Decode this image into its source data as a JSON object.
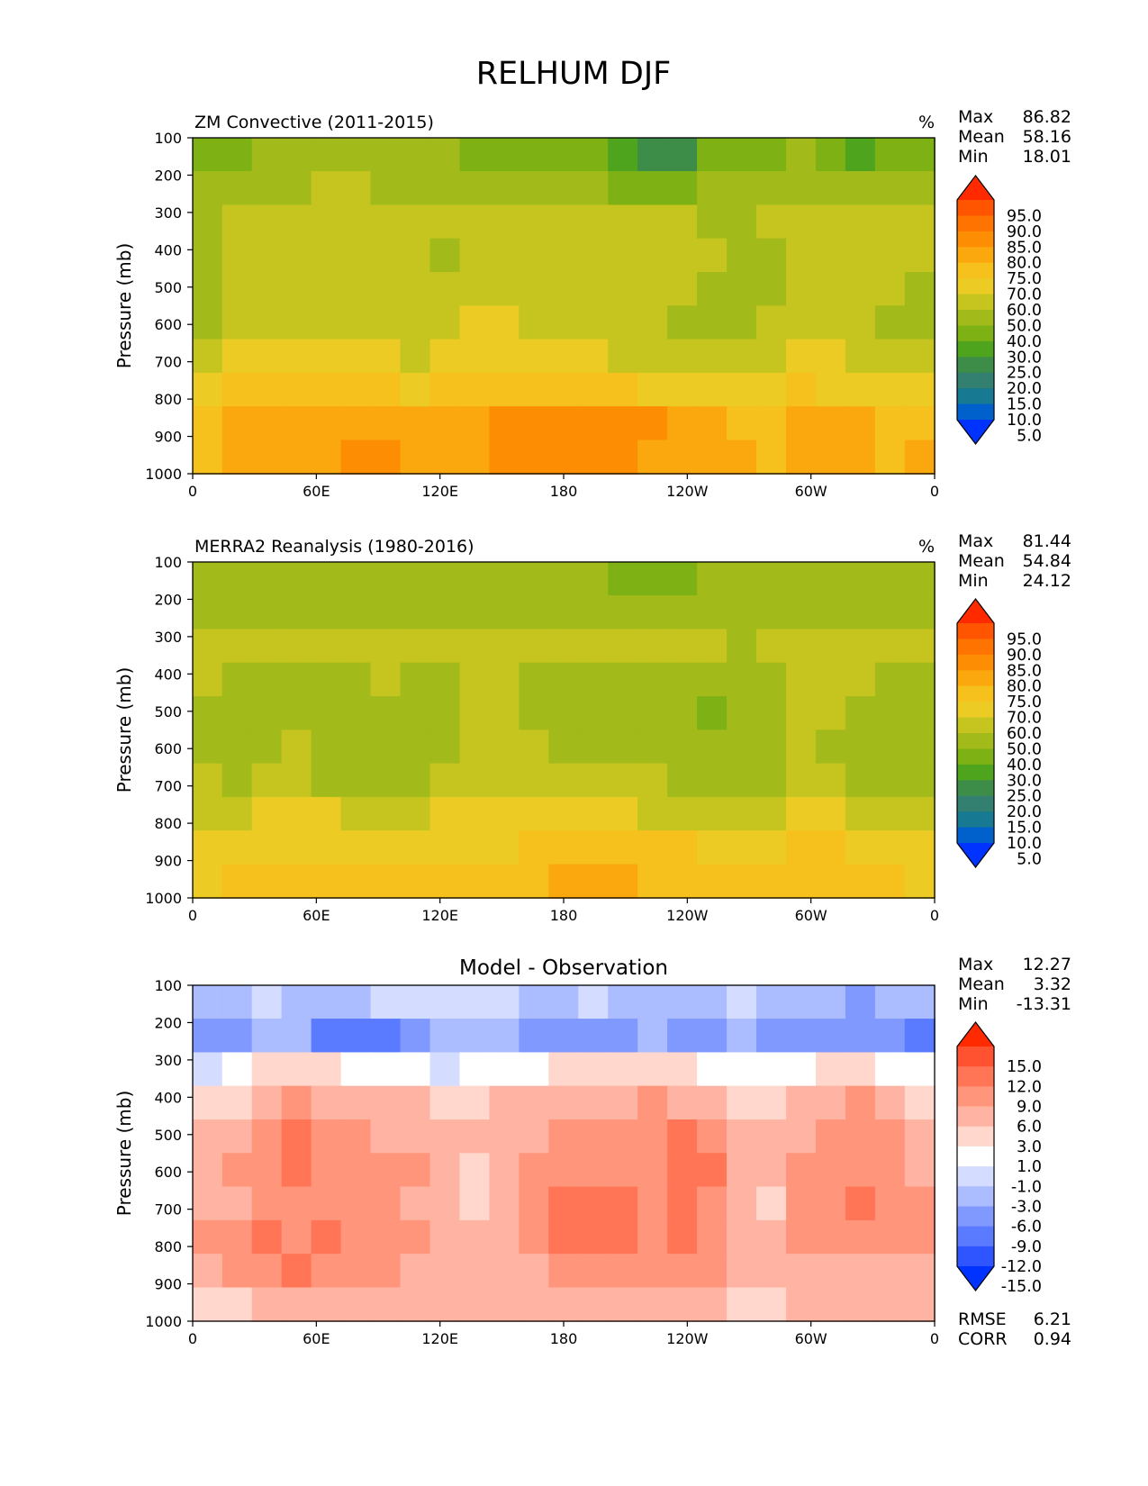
{
  "figure": {
    "title": "RELHUM DJF"
  },
  "chart_data": [
    {
      "type": "heatmap",
      "title": "ZM Convective (2011-2015)",
      "units": "%",
      "ylabel": "Pressure (mb)",
      "x_ticks": [
        "0",
        "60E",
        "120E",
        "180",
        "120W",
        "60W",
        "0"
      ],
      "y_ticks": [
        "100",
        "200",
        "300",
        "400",
        "500",
        "600",
        "700",
        "800",
        "900",
        "1000"
      ],
      "xlim": [
        0,
        360
      ],
      "ylim": [
        100,
        1000
      ],
      "stats": [
        {
          "label": "Max",
          "value": "86.82"
        },
        {
          "label": "Mean",
          "value": "58.16"
        },
        {
          "label": "Min",
          "value": "18.01"
        }
      ],
      "colorbar": {
        "levels": [
          "95.0",
          "90.0",
          "85.0",
          "80.0",
          "75.0",
          "70.0",
          "60.0",
          "50.0",
          "40.0",
          "30.0",
          "25.0",
          "20.0",
          "15.0",
          "10.0",
          "5.0"
        ],
        "colors": [
          "#ff2a00",
          "#ff5500",
          "#ff7300",
          "#fd8e04",
          "#fba80f",
          "#f7c11d",
          "#ebcb24",
          "#c6c41f",
          "#a2bb1a",
          "#7eb214",
          "#4ea41c",
          "#3d8d48",
          "#337f70",
          "#177a92",
          "#0060cc",
          "#0033ff"
        ]
      },
      "field": {
        "levels": [
          "100",
          "200",
          "300",
          "400",
          "500",
          "600",
          "700",
          "800",
          "900",
          "1000"
        ],
        "rows": [
          [
            36,
            38,
            42,
            45,
            46,
            45,
            44,
            42,
            40,
            38,
            36,
            35,
            33,
            30,
            26,
            22,
            24,
            30,
            34,
            38,
            40,
            36,
            28,
            32,
            36
          ],
          [
            42,
            44,
            47,
            49,
            50,
            50,
            49,
            47,
            46,
            45,
            44,
            43,
            42,
            40,
            38,
            36,
            38,
            42,
            44,
            46,
            47,
            45,
            42,
            44,
            45
          ],
          [
            48,
            52,
            56,
            58,
            58,
            57,
            56,
            54,
            53,
            54,
            56,
            57,
            56,
            55,
            54,
            52,
            50,
            48,
            47,
            50,
            54,
            56,
            58,
            57,
            55
          ],
          [
            48,
            53,
            58,
            59,
            59,
            58,
            58,
            57,
            49,
            55,
            58,
            59,
            58,
            57,
            56,
            55,
            53,
            50,
            48,
            47,
            52,
            56,
            57,
            55,
            50
          ],
          [
            46,
            52,
            57,
            58,
            59,
            59,
            58,
            58,
            55,
            56,
            58,
            59,
            59,
            58,
            56,
            54,
            50,
            48,
            47,
            49,
            54,
            56,
            56,
            52,
            48
          ],
          [
            47,
            53,
            57,
            58,
            59,
            59,
            58,
            57,
            58,
            62,
            60,
            59,
            59,
            58,
            57,
            54,
            49,
            47,
            46,
            51,
            55,
            56,
            54,
            48,
            46
          ],
          [
            56,
            60,
            62,
            63,
            61,
            60,
            60,
            58,
            60,
            64,
            63,
            62,
            61,
            60,
            59,
            58,
            56,
            54,
            52,
            56,
            62,
            61,
            58,
            53,
            50
          ],
          [
            68,
            70,
            71,
            72,
            71,
            70,
            70,
            69,
            70,
            72,
            72,
            72,
            72,
            71,
            70,
            69,
            68,
            66,
            64,
            66,
            70,
            69,
            66,
            62,
            60
          ],
          [
            73,
            75,
            77,
            78,
            78,
            78,
            78,
            77,
            77,
            78,
            80,
            82,
            83,
            83,
            82,
            80,
            78,
            76,
            74,
            72,
            78,
            78,
            76,
            73,
            73
          ],
          [
            74,
            77,
            79,
            79,
            79,
            80,
            80,
            79,
            79,
            79,
            80,
            81,
            81,
            81,
            80,
            79,
            78,
            77,
            76,
            73,
            77,
            78,
            77,
            74,
            76
          ]
        ]
      }
    },
    {
      "type": "heatmap",
      "title": "MERRA2 Reanalysis (1980-2016)",
      "units": "%",
      "ylabel": "Pressure (mb)",
      "x_ticks": [
        "0",
        "60E",
        "120E",
        "180",
        "120W",
        "60W",
        "0"
      ],
      "y_ticks": [
        "100",
        "200",
        "300",
        "400",
        "500",
        "600",
        "700",
        "800",
        "900",
        "1000"
      ],
      "xlim": [
        0,
        360
      ],
      "ylim": [
        100,
        1000
      ],
      "stats": [
        {
          "label": "Max",
          "value": "81.44"
        },
        {
          "label": "Mean",
          "value": "54.84"
        },
        {
          "label": "Min",
          "value": "24.12"
        }
      ],
      "colorbar": {
        "levels": [
          "95.0",
          "90.0",
          "85.0",
          "80.0",
          "75.0",
          "70.0",
          "60.0",
          "50.0",
          "40.0",
          "30.0",
          "25.0",
          "20.0",
          "15.0",
          "10.0",
          "5.0"
        ],
        "colors": [
          "#ff2a00",
          "#ff5500",
          "#ff7300",
          "#fd8e04",
          "#fba80f",
          "#f7c11d",
          "#ebcb24",
          "#c6c41f",
          "#a2bb1a",
          "#7eb214",
          "#4ea41c",
          "#3d8d48",
          "#337f70",
          "#177a92",
          "#0060cc",
          "#0033ff"
        ]
      },
      "field": {
        "levels": [
          "100",
          "200",
          "300",
          "400",
          "500",
          "600",
          "700",
          "800",
          "900",
          "1000"
        ],
        "rows": [
          [
            40,
            42,
            44,
            45,
            46,
            46,
            45,
            44,
            43,
            42,
            42,
            42,
            41,
            40,
            37,
            35,
            36,
            40,
            42,
            44,
            45,
            44,
            43,
            42,
            42
          ],
          [
            44,
            46,
            47,
            48,
            48,
            48,
            47,
            46,
            46,
            46,
            47,
            47,
            47,
            46,
            45,
            44,
            45,
            46,
            47,
            48,
            48,
            47,
            46,
            46,
            45
          ],
          [
            52,
            54,
            56,
            57,
            57,
            57,
            56,
            55,
            54,
            53,
            52,
            51,
            50,
            52,
            54,
            55,
            55,
            52,
            48,
            52,
            55,
            56,
            56,
            54,
            52
          ],
          [
            50,
            47,
            46,
            47,
            48,
            49,
            50,
            48,
            46,
            50,
            52,
            49,
            47,
            46,
            46,
            48,
            47,
            45,
            44,
            48,
            54,
            53,
            50,
            46,
            46
          ],
          [
            49,
            46,
            45,
            46,
            47,
            47,
            47,
            47,
            46,
            50,
            53,
            49,
            47,
            46,
            46,
            46,
            43,
            38,
            43,
            48,
            53,
            50,
            47,
            45,
            45
          ],
          [
            49,
            47,
            49,
            51,
            47,
            45,
            46,
            47,
            48,
            52,
            54,
            51,
            47,
            46,
            46,
            45,
            40,
            41,
            45,
            48,
            51,
            49,
            46,
            41,
            44
          ],
          [
            50,
            48,
            51,
            52,
            49,
            48,
            48,
            49,
            51,
            54,
            56,
            55,
            53,
            52,
            51,
            50,
            49,
            48,
            47,
            49,
            53,
            52,
            49,
            46,
            45
          ],
          [
            56,
            58,
            60,
            61,
            60,
            59,
            58,
            58,
            60,
            62,
            63,
            63,
            62,
            61,
            60,
            59,
            58,
            57,
            56,
            58,
            62,
            61,
            58,
            55,
            52
          ],
          [
            63,
            65,
            67,
            68,
            68,
            68,
            68,
            68,
            69,
            68,
            68,
            72,
            72,
            72,
            72,
            71,
            70,
            69,
            68,
            66,
            70,
            70,
            69,
            66,
            64
          ],
          [
            68,
            70,
            72,
            72,
            73,
            73,
            72,
            72,
            73,
            73,
            72,
            74,
            75,
            75,
            75,
            74,
            73,
            73,
            72,
            70,
            74,
            74,
            73,
            70,
            69
          ]
        ]
      }
    },
    {
      "type": "heatmap",
      "title": "Model - Observation",
      "ylabel": "Pressure (mb)",
      "x_ticks": [
        "0",
        "60E",
        "120E",
        "180",
        "120W",
        "60W",
        "0"
      ],
      "y_ticks": [
        "100",
        "200",
        "300",
        "400",
        "500",
        "600",
        "700",
        "800",
        "900",
        "1000"
      ],
      "xlim": [
        0,
        360
      ],
      "ylim": [
        100,
        1000
      ],
      "stats": [
        {
          "label": "Max",
          "value": "12.27"
        },
        {
          "label": "Mean",
          "value": "3.32"
        },
        {
          "label": "Min",
          "value": "-13.31"
        }
      ],
      "extra_stats": [
        {
          "label": "RMSE",
          "value": "6.21"
        },
        {
          "label": "CORR",
          "value": "0.94"
        }
      ],
      "colorbar": {
        "levels": [
          "15.0",
          "12.0",
          "9.0",
          "6.0",
          "3.0",
          "1.0",
          "-1.0",
          "-3.0",
          "-6.0",
          "-9.0",
          "-12.0",
          "-15.0"
        ],
        "colors": [
          "#ff2a00",
          "#ff5230",
          "#ff7556",
          "#ff967c",
          "#ffb4a3",
          "#ffd7cd",
          "#ffffff",
          "#d4dcff",
          "#abbcff",
          "#8099ff",
          "#5a7bff",
          "#2e55ff",
          "#0033ff"
        ]
      },
      "field": {
        "levels": [
          "100",
          "200",
          "300",
          "400",
          "500",
          "600",
          "700",
          "800",
          "900",
          "1000"
        ],
        "rows": [
          [
            -4,
            -4,
            -3,
            -4,
            -5,
            -4,
            -3,
            -3,
            -2,
            -2,
            -3,
            -4,
            -4,
            -3,
            -4,
            -6,
            -6,
            -5,
            -3,
            -5,
            -5,
            -4,
            -7,
            -6,
            -5
          ],
          [
            -8,
            -7,
            -4,
            -6,
            -10,
            -12,
            -11,
            -7,
            -6,
            -6,
            -5,
            -7,
            -8,
            -7,
            -7,
            -6,
            -8,
            -8,
            -5,
            -7,
            -8,
            -7,
            -8,
            -9,
            -10
          ],
          [
            -2,
            -1,
            1,
            1,
            1,
            0,
            0,
            -1,
            -2,
            0,
            0,
            0,
            1,
            1,
            2,
            2,
            1,
            0,
            -1,
            -1,
            0,
            1,
            1,
            0,
            -1
          ],
          [
            1,
            2,
            5,
            6,
            5,
            4,
            3,
            3,
            1,
            2,
            3,
            4,
            5,
            5,
            5,
            6,
            5,
            3,
            1,
            2,
            3,
            5,
            6,
            4,
            2
          ],
          [
            3,
            4,
            6,
            9,
            8,
            6,
            5,
            4,
            3,
            4,
            4,
            5,
            6,
            6,
            6,
            7,
            9,
            7,
            3,
            3,
            5,
            7,
            8,
            6,
            4
          ],
          [
            5,
            6,
            7,
            9,
            8,
            7,
            6,
            6,
            5,
            2,
            5,
            6,
            7,
            7,
            7,
            7,
            10,
            9,
            4,
            3,
            6,
            7,
            8,
            7,
            5
          ],
          [
            5,
            4,
            6,
            7,
            6,
            6,
            6,
            5,
            4,
            1,
            4,
            6,
            10,
            10,
            10,
            8,
            11,
            8,
            4,
            2,
            6,
            7,
            9,
            8,
            6
          ],
          [
            6,
            8,
            9,
            8,
            9,
            8,
            7,
            6,
            5,
            4,
            5,
            6,
            10,
            10,
            10,
            8,
            9,
            8,
            5,
            3,
            6,
            7,
            8,
            7,
            6
          ],
          [
            5,
            6,
            8,
            9,
            8,
            8,
            6,
            5,
            4,
            4,
            4,
            5,
            6,
            6,
            6,
            6,
            6,
            6,
            3,
            3,
            5,
            5,
            5,
            5,
            5
          ],
          [
            2,
            2,
            3,
            4,
            4,
            4,
            4,
            3,
            3,
            3,
            3,
            3,
            4,
            4,
            4,
            4,
            3,
            3,
            2,
            2,
            3,
            3,
            3,
            3,
            3
          ]
        ]
      }
    }
  ]
}
